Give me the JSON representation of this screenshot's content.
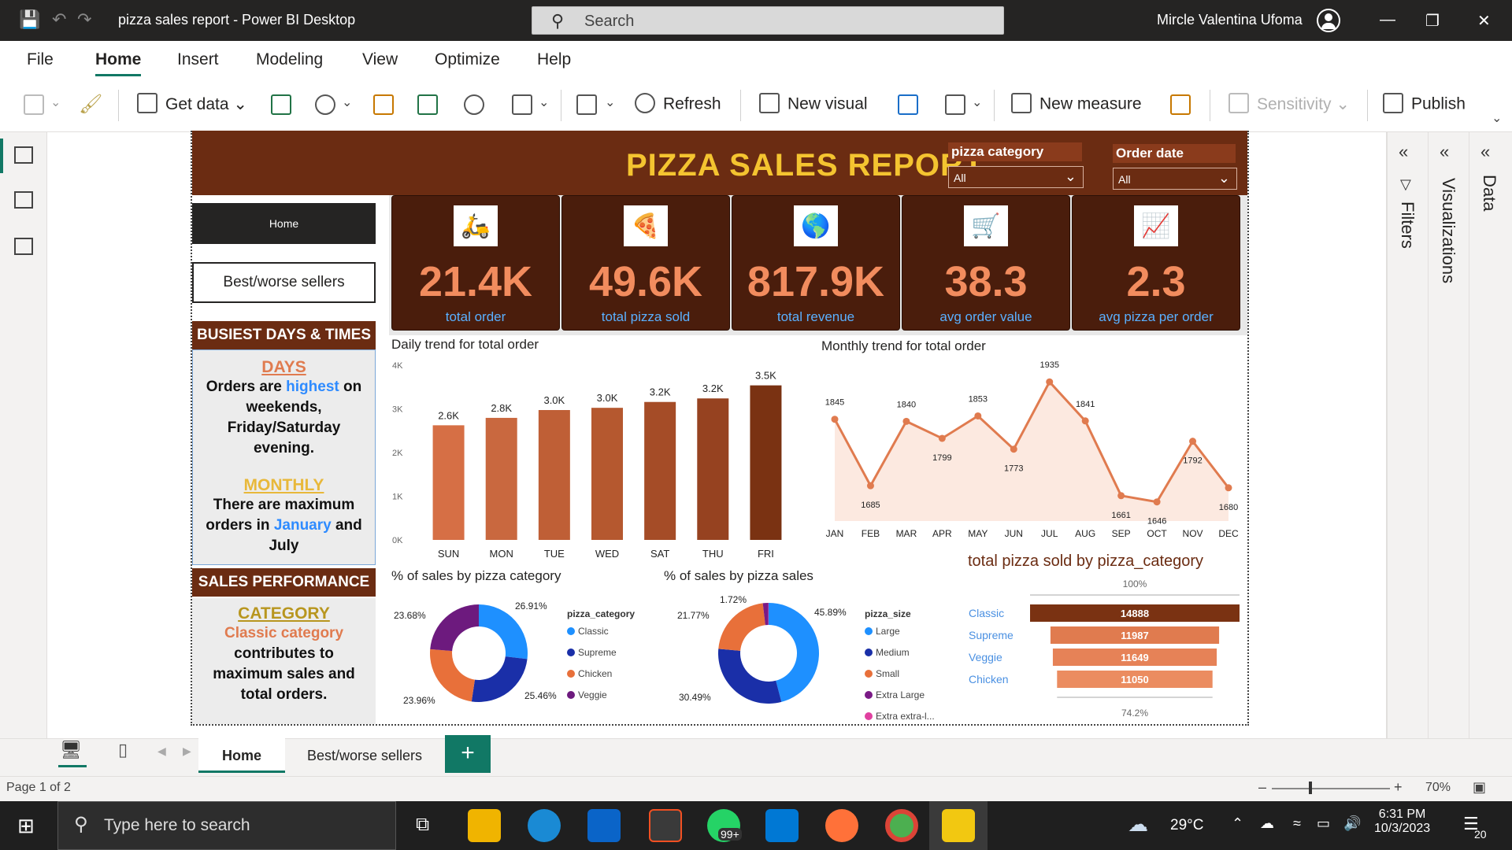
{
  "window": {
    "title": "pizza sales report - Power BI Desktop",
    "search_placeholder": "Search",
    "user_name": "Mircle Valentina Ufoma"
  },
  "menu": [
    "File",
    "Home",
    "Insert",
    "Modeling",
    "View",
    "Optimize",
    "Help"
  ],
  "ribbon": {
    "get_data": "Get data",
    "refresh": "Refresh",
    "new_visual": "New visual",
    "new_measure": "New measure",
    "sensitivity": "Sensitivity",
    "publish": "Publish"
  },
  "right_panes": {
    "filters": "Filters",
    "visualizations": "Visualizations",
    "data": "Data"
  },
  "report": {
    "title": "PIZZA SALES REPORT",
    "slicers": [
      {
        "label": "pizza category",
        "value": "All"
      },
      {
        "label": "Order date",
        "value": "All"
      }
    ],
    "nav": {
      "home": "Home",
      "best": "Best/worse sellers"
    },
    "busiest": {
      "header": "BUSIEST DAYS & TIMES",
      "days_title": "DAYS",
      "days_t1": "Orders are",
      "days_hl": "highest",
      "days_t2": "on",
      "days_t3": "weekends,",
      "days_t4": "Friday/Saturday",
      "days_t5": "evening.",
      "monthly_title": "MONTHLY",
      "monthly_t1": "There are maximum",
      "monthly_t2": "orders in",
      "monthly_hl1": "January",
      "monthly_t3": "and",
      "monthly_hl2": "July"
    },
    "sales_perf": {
      "header": "SALES PERFORMANCE",
      "cat_title": "CATEGORY",
      "cat_hl": "Classic category",
      "cat_t1": "contributes to",
      "cat_t2": "maximum sales and",
      "cat_t3": "total orders."
    },
    "kpis": [
      {
        "value": "21.4K",
        "label": "total order",
        "icon": "delivery-person-icon"
      },
      {
        "value": "49.6K",
        "label": "total pizza sold",
        "icon": "pizza-slice-icon"
      },
      {
        "value": "817.9K",
        "label": "total revenue",
        "icon": "money-globe-icon"
      },
      {
        "value": "38.3",
        "label": "avg order value",
        "icon": "shopping-cart-icon"
      },
      {
        "value": "2.3",
        "label": "avg pizza per order",
        "icon": "growth-chart-icon"
      }
    ]
  },
  "chart_data": [
    {
      "type": "bar",
      "title": "Daily trend for total order",
      "categories": [
        "SUN",
        "MON",
        "TUE",
        "WED",
        "SAT",
        "THU",
        "FRI"
      ],
      "values": [
        2624,
        2794,
        2973,
        3024,
        3158,
        3239,
        3538
      ],
      "data_labels": [
        "2.6K",
        "2.8K",
        "3.0K",
        "3.0K",
        "3.2K",
        "3.2K",
        "3.5K"
      ],
      "y_ticks": [
        "0K",
        "1K",
        "2K",
        "3K",
        "4K"
      ],
      "ylim": [
        0,
        4000
      ],
      "colors": [
        "#d66f45",
        "#c9683f",
        "#bf5f36",
        "#b5582f",
        "#a54c27",
        "#964220",
        "#7a3212"
      ]
    },
    {
      "type": "area",
      "title": "Monthly trend for total order",
      "categories": [
        "JAN",
        "FEB",
        "MAR",
        "APR",
        "MAY",
        "JUN",
        "JUL",
        "AUG",
        "SEP",
        "OCT",
        "NOV",
        "DEC"
      ],
      "values": [
        1845,
        1685,
        1840,
        1799,
        1853,
        1773,
        1935,
        1841,
        1661,
        1646,
        1792,
        1680
      ],
      "ylim": [
        1600,
        1960
      ],
      "color": "#e07b4f"
    },
    {
      "type": "pie",
      "title": "% of sales by pizza category",
      "legend_title": "pizza_category",
      "categories": [
        "Classic",
        "Supreme",
        "Chicken",
        "Veggie"
      ],
      "values": [
        26.91,
        25.46,
        23.96,
        23.68
      ],
      "labels": [
        "26.91%",
        "25.46%",
        "23.96%",
        "23.68%"
      ],
      "colors": [
        "#1e90ff",
        "#1a2fa8",
        "#e8703a",
        "#6d1a7e"
      ]
    },
    {
      "type": "pie",
      "title": "% of sales by pizza sales",
      "legend_title": "pizza_size",
      "categories": [
        "Large",
        "Medium",
        "Small",
        "Extra Large",
        "Extra extra-l..."
      ],
      "values": [
        45.89,
        30.49,
        21.77,
        1.72,
        0.12
      ],
      "labels": [
        "45.89%",
        "30.49%",
        "21.77%",
        "1.72%",
        ""
      ],
      "colors": [
        "#1e90ff",
        "#1a2fa8",
        "#e8703a",
        "#7a1a86",
        "#e040a0"
      ]
    },
    {
      "type": "bar",
      "title": "total pizza sold by pizza_category",
      "categories": [
        "Classic",
        "Supreme",
        "Veggie",
        "Chicken"
      ],
      "values": [
        14888,
        11987,
        11649,
        11050
      ],
      "top_label": "100%",
      "bottom_label": "74.2%",
      "colors": [
        "#7a3212",
        "#e07b4f",
        "#e68257",
        "#eb8c60"
      ]
    }
  ],
  "page_tabs": [
    "Home",
    "Best/worse sellers"
  ],
  "status": {
    "page": "Page 1 of 2",
    "zoom": "70%"
  },
  "taskbar": {
    "search_placeholder": "Type here to search",
    "temperature": "29°C",
    "time": "6:31 PM",
    "date": "10/3/2023",
    "notif_count": "20",
    "whatsapp_badge": "99+"
  }
}
